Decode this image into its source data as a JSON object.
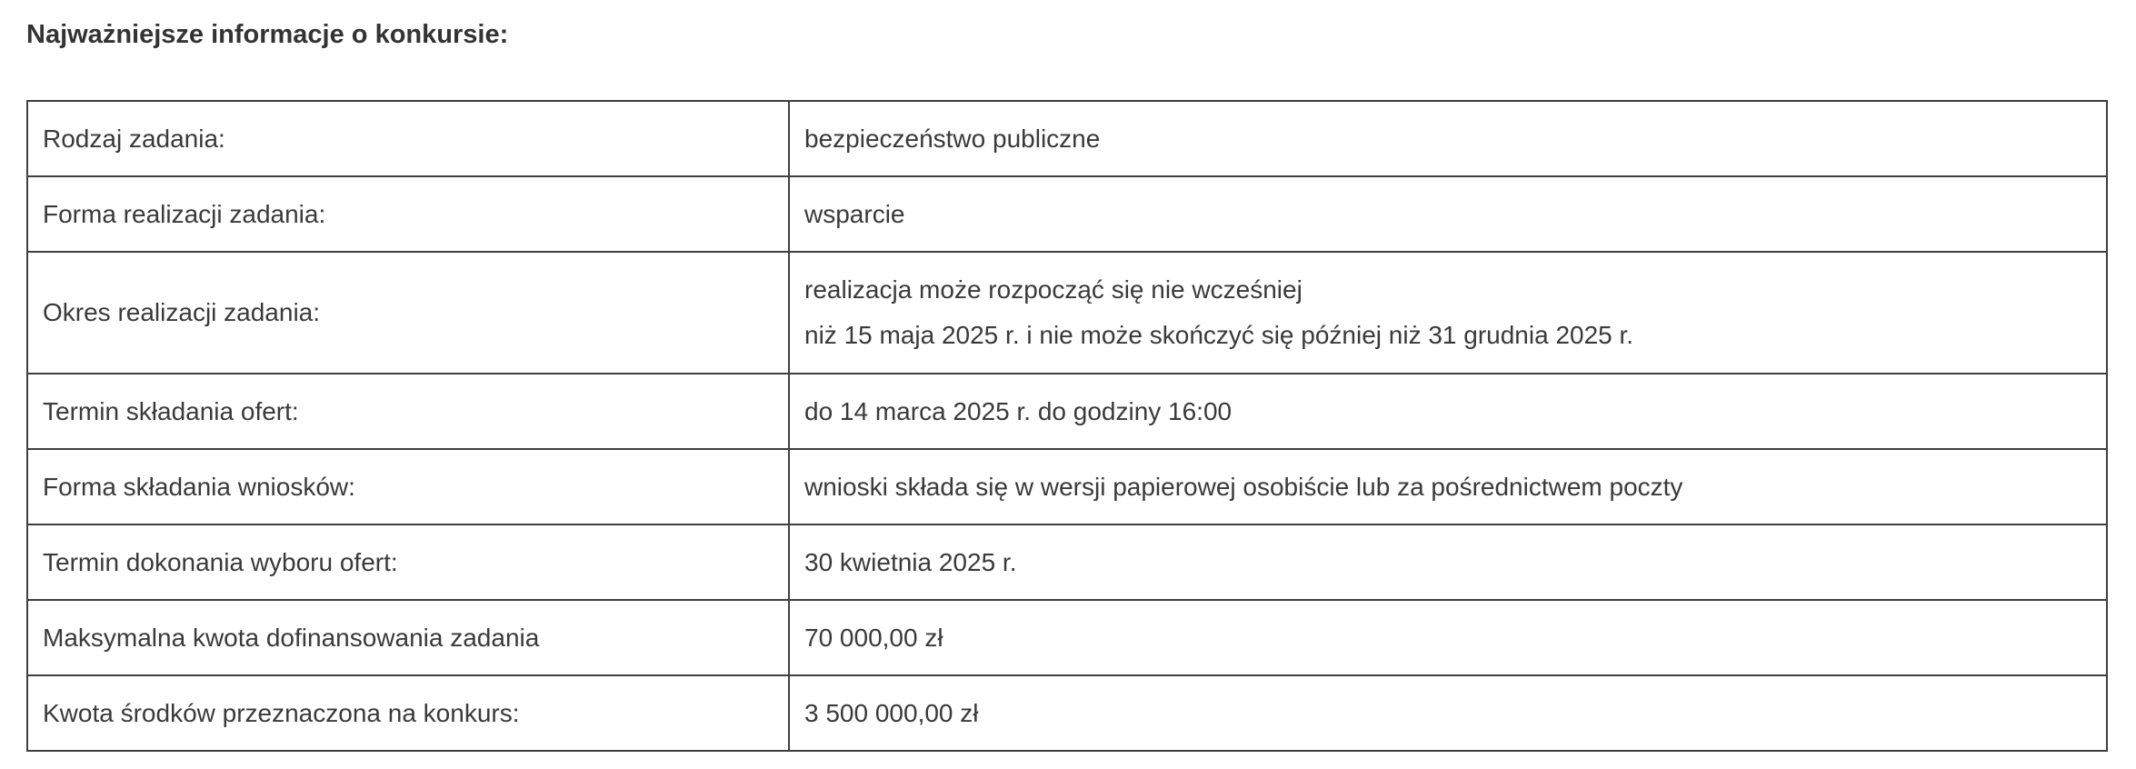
{
  "title": "Najważniejsze informacje o konkursie:",
  "rows": [
    {
      "label": "Rodzaj zadania:",
      "value": [
        "bezpieczeństwo publiczne"
      ]
    },
    {
      "label": "Forma realizacji zadania:",
      "value": [
        "wsparcie"
      ]
    },
    {
      "label": "Okres realizacji zadania:",
      "value": [
        "realizacja może rozpocząć się nie wcześniej",
        "niż 15 maja 2025 r. i nie może skończyć się później niż 31 grudnia 2025 r."
      ]
    },
    {
      "label": "Termin składania ofert:",
      "value": [
        "do 14 marca 2025 r. do godziny 16:00"
      ]
    },
    {
      "label": "Forma składania wniosków:",
      "value": [
        "wnioski składa się w wersji papierowej osobiście lub za pośrednictwem poczty"
      ]
    },
    {
      "label": "Termin dokonania wyboru ofert:",
      "value": [
        "30 kwietnia 2025 r."
      ]
    },
    {
      "label": "Maksymalna kwota dofinansowania zadania",
      "value": [
        "70 000,00 zł"
      ]
    },
    {
      "label": "Kwota środków przeznaczona na konkurs:",
      "value": [
        "3 500 000,00 zł"
      ]
    }
  ]
}
